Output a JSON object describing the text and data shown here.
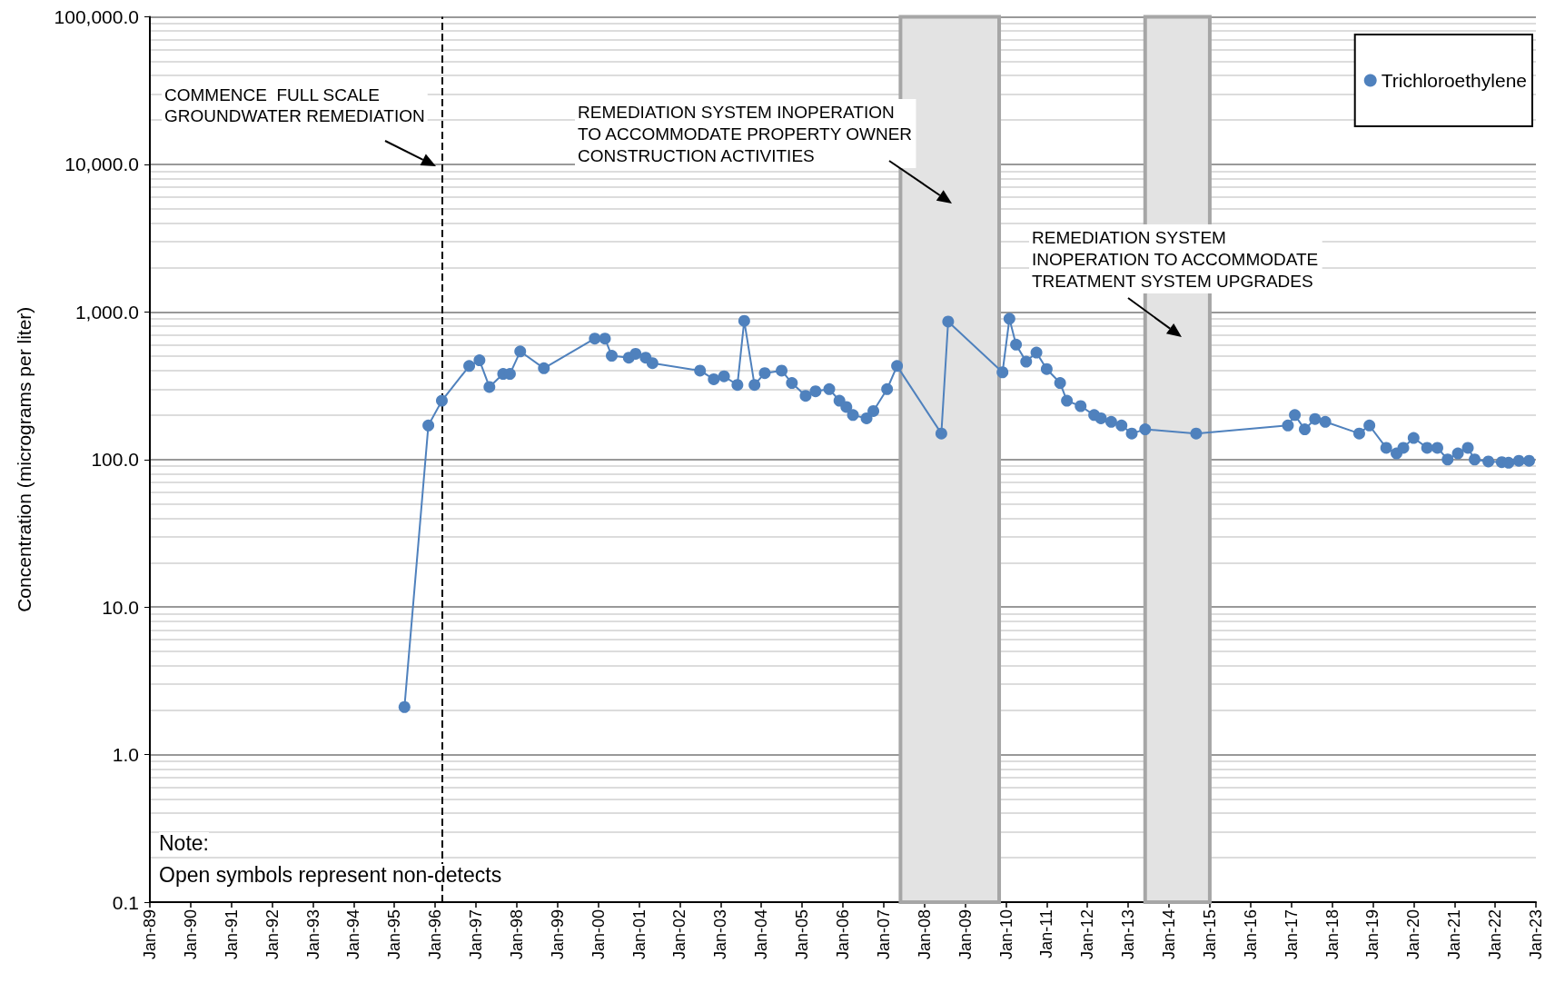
{
  "chart_data": {
    "type": "line",
    "ylabel": "Concentration (micrograms per liter)",
    "x": [
      "1995-04",
      "1995-11",
      "1996-03",
      "1996-11",
      "1997-02",
      "1997-05",
      "1997-09",
      "1997-11",
      "1998-02",
      "1998-09",
      "1999-12",
      "2000-03",
      "2000-05",
      "2000-10",
      "2000-12",
      "2001-03",
      "2001-05",
      "2002-07",
      "2002-11",
      "2003-02",
      "2003-06",
      "2003-08",
      "2003-11",
      "2004-02",
      "2004-07",
      "2004-10",
      "2005-02",
      "2005-05",
      "2005-09",
      "2005-12",
      "2006-02",
      "2006-04",
      "2006-08",
      "2006-10",
      "2007-02",
      "2007-05",
      "2008-06",
      "2008-08",
      "2009-12",
      "2010-02",
      "2010-04",
      "2010-07",
      "2010-10",
      "2011-01",
      "2011-05",
      "2011-07",
      "2011-11",
      "2012-03",
      "2012-05",
      "2012-08",
      "2012-11",
      "2013-02",
      "2013-06",
      "2014-09",
      "2016-12",
      "2017-02",
      "2017-05",
      "2017-08",
      "2017-11",
      "2018-09",
      "2018-12",
      "2019-05",
      "2019-08",
      "2019-10",
      "2020-01",
      "2020-05",
      "2020-08",
      "2020-11",
      "2021-02",
      "2021-05",
      "2021-07",
      "2021-11",
      "2022-03",
      "2022-05",
      "2022-08",
      "2022-11"
    ],
    "series": [
      {
        "name": "Trichloroethylene",
        "color": "#4f81bd",
        "values": [
          2.1,
          170,
          250,
          430,
          470,
          310,
          380,
          380,
          540,
          415,
          660,
          660,
          505,
          490,
          520,
          490,
          450,
          400,
          350,
          366,
          320,
          870,
          320,
          385,
          400,
          330,
          270,
          290,
          300,
          250,
          227,
          200,
          190,
          213,
          300,
          430,
          150,
          860,
          390,
          900,
          600,
          460,
          530,
          410,
          330,
          250,
          230,
          200,
          190,
          180,
          170,
          150,
          160,
          150,
          170,
          200,
          160,
          188,
          180,
          150,
          170,
          120,
          110,
          120,
          140,
          120,
          120,
          100,
          110,
          120,
          100,
          97,
          96,
          95,
          98,
          98
        ]
      }
    ],
    "log": "y",
    "xlim": [
      "1989-01",
      "2023-01"
    ],
    "xticks": [
      {
        "value": "1989-01",
        "label": "Jan-89"
      },
      {
        "value": "1990-01",
        "label": "Jan-90"
      },
      {
        "value": "1991-01",
        "label": "Jan-91"
      },
      {
        "value": "1992-01",
        "label": "Jan-92"
      },
      {
        "value": "1993-01",
        "label": "Jan-93"
      },
      {
        "value": "1994-01",
        "label": "Jan-94"
      },
      {
        "value": "1995-01",
        "label": "Jan-95"
      },
      {
        "value": "1996-01",
        "label": "Jan-96"
      },
      {
        "value": "1997-01",
        "label": "Jan-97"
      },
      {
        "value": "1998-01",
        "label": "Jan-98"
      },
      {
        "value": "1999-01",
        "label": "Jan-99"
      },
      {
        "value": "2000-01",
        "label": "Jan-00"
      },
      {
        "value": "2001-01",
        "label": "Jan-01"
      },
      {
        "value": "2002-01",
        "label": "Jan-02"
      },
      {
        "value": "2003-01",
        "label": "Jan-03"
      },
      {
        "value": "2004-01",
        "label": "Jan-04"
      },
      {
        "value": "2005-01",
        "label": "Jan-05"
      },
      {
        "value": "2006-01",
        "label": "Jan-06"
      },
      {
        "value": "2007-01",
        "label": "Jan-07"
      },
      {
        "value": "2008-01",
        "label": "Jan-08"
      },
      {
        "value": "2009-01",
        "label": "Jan-09"
      },
      {
        "value": "2010-01",
        "label": "Jan-10"
      },
      {
        "value": "2011-01",
        "label": "Jan-11"
      },
      {
        "value": "2012-01",
        "label": "Jan-12"
      },
      {
        "value": "2013-01",
        "label": "Jan-13"
      },
      {
        "value": "2014-01",
        "label": "Jan-14"
      },
      {
        "value": "2015-01",
        "label": "Jan-15"
      },
      {
        "value": "2016-01",
        "label": "Jan-16"
      },
      {
        "value": "2017-01",
        "label": "Jan-17"
      },
      {
        "value": "2018-01",
        "label": "Jan-18"
      },
      {
        "value": "2019-01",
        "label": "Jan-19"
      },
      {
        "value": "2020-01",
        "label": "Jan-20"
      },
      {
        "value": "2021-01",
        "label": "Jan-21"
      },
      {
        "value": "2022-01",
        "label": "Jan-22"
      },
      {
        "value": "2023-01",
        "label": "Jan-23"
      }
    ],
    "ylim": [
      0.1,
      100000
    ],
    "yticks": [
      {
        "value": 0.1,
        "label": "0.1"
      },
      {
        "value": 1,
        "label": "1.0"
      },
      {
        "value": 10,
        "label": "10.0"
      },
      {
        "value": 100,
        "label": "100.0"
      },
      {
        "value": 1000,
        "label": "1,000.0"
      },
      {
        "value": 10000,
        "label": "10,000.0"
      },
      {
        "value": 100000,
        "label": "100,000.0"
      }
    ],
    "grid": "y",
    "legend": "top right",
    "marker": "circle",
    "line_style": "solid",
    "ref_lines": [
      {
        "axis": "x",
        "value": "1996-03",
        "label": "COMMENCE  FULL SCALE\nGROUNDWATER REMEDIATION",
        "color": "#000000",
        "line_style": "dashed"
      }
    ],
    "bands": [
      {
        "axis": "x",
        "from": "2007-06",
        "to": "2009-11",
        "label": "REMEDIATION SYSTEM INOPERATION\nTO ACCOMMODATE PROPERTY OWNER\nCONSTRUCTION ACTIVITIES",
        "color": "#e3e3e3"
      },
      {
        "axis": "x",
        "from": "2013-06",
        "to": "2015-01",
        "label": "REMEDIATION SYSTEM\nINOPERATION TO ACCOMMODATE\nTREATMENT SYSTEM UPGRADES",
        "color": "#e3e3e3"
      }
    ],
    "annotations": [
      "Note:",
      "Open symbols represent non-detects"
    ]
  }
}
